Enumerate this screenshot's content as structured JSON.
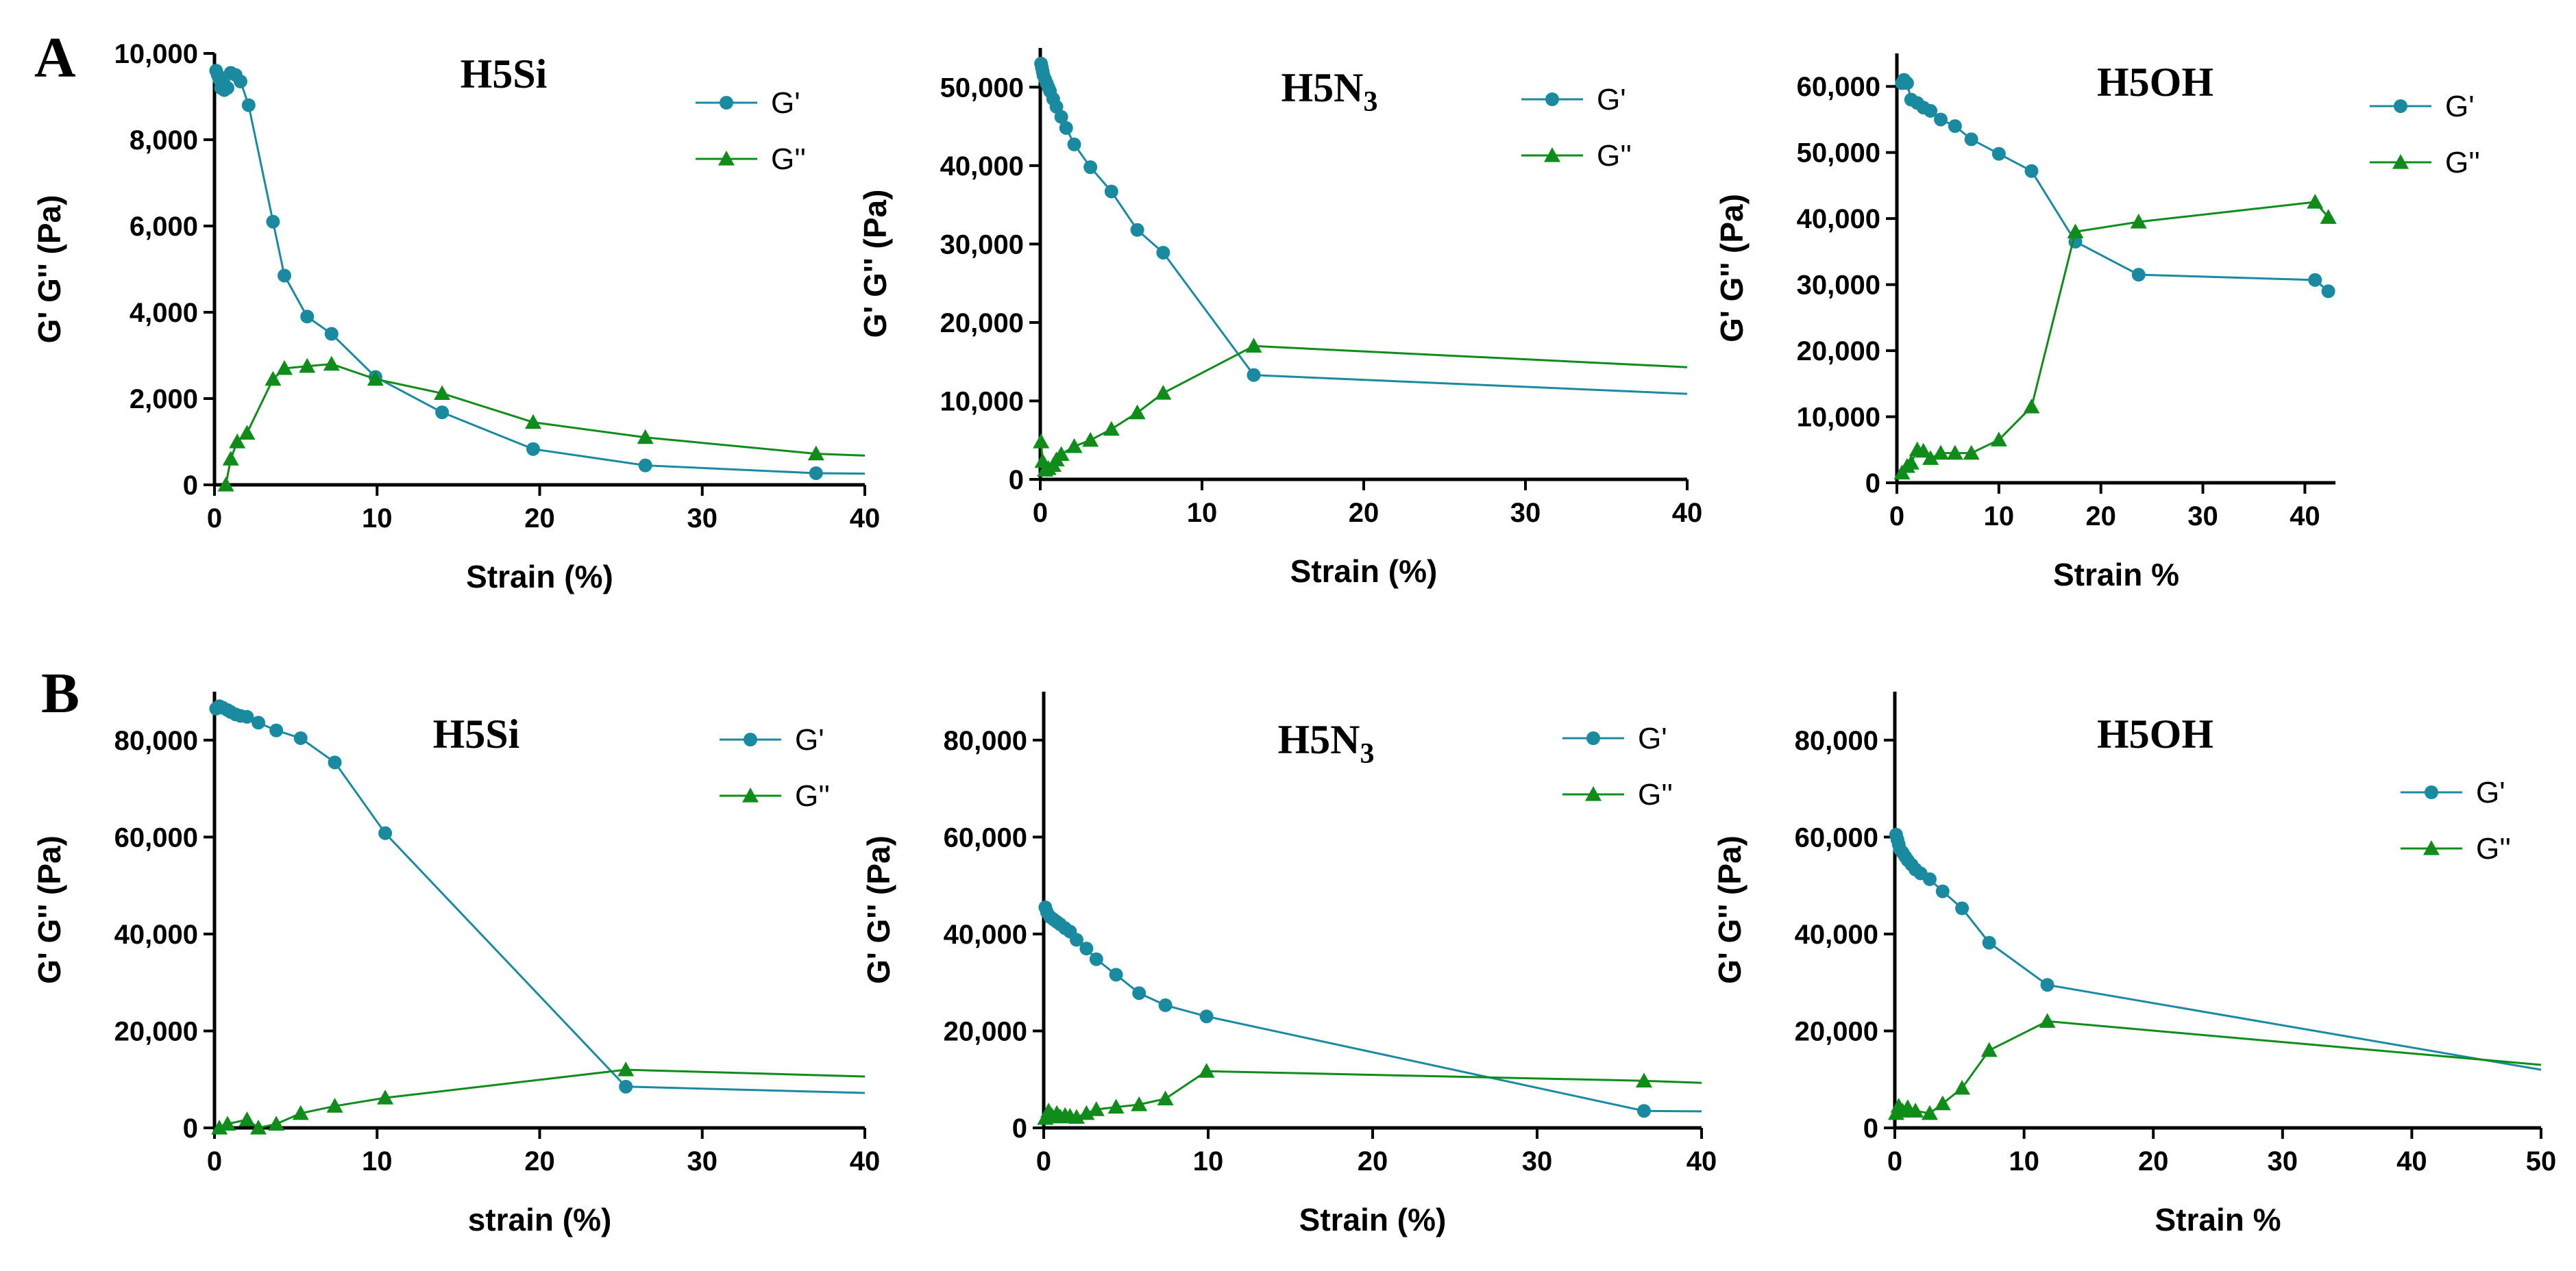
{
  "panels": [
    "A",
    "B"
  ],
  "colors": {
    "gprime": "#1a8aa0",
    "gdouble": "#0f8c1a",
    "axis": "#000000"
  },
  "chart_data": [
    {
      "panel": "A",
      "type": "line",
      "title": "H5Si",
      "title_sub": "",
      "xlabel": "Strain (%)",
      "ylabel": "G' G'' (Pa)",
      "xlim": [
        0,
        40
      ],
      "ylim": [
        0,
        10000
      ],
      "xticks": [
        0,
        10,
        20,
        30,
        40
      ],
      "xtick_labels": [
        "0",
        "10",
        "20",
        "30",
        "40"
      ],
      "yticks": [
        0,
        2000,
        4000,
        6000,
        8000,
        10000
      ],
      "ytick_labels": [
        "0",
        "2,000",
        "4,000",
        "6,000",
        "8,000",
        "10,000"
      ],
      "legend": "top-right",
      "series": [
        {
          "name": "G'",
          "marker": "circle",
          "x": [
            0.1,
            0.2,
            0.3,
            0.4,
            0.5,
            0.6,
            0.8,
            1.0,
            1.3,
            1.6,
            2.1,
            3.6,
            4.3,
            5.7,
            7.2,
            9.9,
            14,
            19.6,
            26.5,
            37,
            40
          ],
          "y": [
            9600,
            9500,
            9400,
            9200,
            9300,
            9150,
            9200,
            9550,
            9500,
            9350,
            8800,
            6100,
            4850,
            3900,
            3500,
            2500,
            1680,
            830,
            450,
            270,
            260
          ]
        },
        {
          "name": "G''",
          "marker": "triangle",
          "x": [
            0.7,
            1.0,
            1.4,
            2.0,
            3.6,
            4.3,
            5.7,
            7.2,
            9.9,
            14,
            19.6,
            26.5,
            37,
            40
          ],
          "y": [
            0,
            600,
            1000,
            1200,
            2450,
            2700,
            2750,
            2800,
            2450,
            2120,
            1450,
            1100,
            720,
            680
          ]
        }
      ]
    },
    {
      "panel": "A",
      "type": "line",
      "title": "H5N",
      "title_sub": "3",
      "xlabel": "Strain (%)",
      "ylabel": "G' G'' (Pa)",
      "xlim": [
        0,
        40
      ],
      "ylim": [
        0,
        55000
      ],
      "xticks": [
        0,
        10,
        20,
        30,
        40
      ],
      "xtick_labels": [
        "0",
        "10",
        "20",
        "30",
        "40"
      ],
      "yticks": [
        0,
        10000,
        20000,
        30000,
        40000,
        50000
      ],
      "ytick_labels": [
        "0",
        "10,000",
        "20,000",
        "30,000",
        "40,000",
        "50,000"
      ],
      "legend": "top-right",
      "series": [
        {
          "name": "G'",
          "marker": "circle",
          "x": [
            0.05,
            0.1,
            0.15,
            0.2,
            0.3,
            0.4,
            0.5,
            0.6,
            0.8,
            1.0,
            1.3,
            1.6,
            2.1,
            3.1,
            4.4,
            6.0,
            7.6,
            13.2,
            40
          ],
          "y": [
            53000,
            52500,
            52000,
            51500,
            51000,
            50500,
            50000,
            49500,
            48500,
            47500,
            46200,
            44800,
            42700,
            39800,
            36700,
            31800,
            28900,
            13300,
            10900
          ]
        },
        {
          "name": "G''",
          "marker": "triangle",
          "x": [
            0.05,
            0.15,
            0.3,
            0.5,
            0.8,
            1.0,
            1.3,
            2.1,
            3.1,
            4.4,
            6.0,
            7.6,
            13.2,
            40
          ],
          "y": [
            4800,
            2300,
            1200,
            1400,
            1800,
            2500,
            3200,
            4200,
            5000,
            6400,
            8500,
            11000,
            17000,
            14300
          ]
        }
      ]
    },
    {
      "panel": "A",
      "type": "line",
      "title": "H5OH",
      "title_sub": "",
      "xlabel": "Strain %",
      "ylabel": "G' G'' (Pa)",
      "xlim": [
        0,
        43
      ],
      "ylim": [
        0,
        65000
      ],
      "xticks": [
        0,
        10,
        20,
        30,
        40
      ],
      "xtick_labels": [
        "0",
        "10",
        "20",
        "30",
        "40"
      ],
      "yticks": [
        0,
        10000,
        20000,
        30000,
        40000,
        50000,
        60000
      ],
      "ytick_labels": [
        "0",
        "10,000",
        "20,000",
        "30,000",
        "40,000",
        "50,000",
        "60,000"
      ],
      "legend": "top-right",
      "series": [
        {
          "name": "G'",
          "marker": "circle",
          "x": [
            0.5,
            0.7,
            1.0,
            1.4,
            2.0,
            2.6,
            3.3,
            4.3,
            5.7,
            7.3,
            10.0,
            13.2,
            17.5,
            23.7,
            41,
            42.3
          ],
          "y": [
            60500,
            61000,
            60500,
            58000,
            57500,
            56800,
            56300,
            55000,
            54000,
            52000,
            49800,
            47200,
            36500,
            31500,
            30700,
            29000
          ]
        },
        {
          "name": "G''",
          "marker": "triangle",
          "x": [
            0.5,
            1.0,
            1.4,
            2.0,
            2.6,
            3.3,
            4.3,
            5.7,
            7.3,
            10.0,
            13.2,
            17.5,
            23.7,
            41,
            42.3
          ],
          "y": [
            1500,
            2500,
            3000,
            5000,
            4800,
            3700,
            4500,
            4500,
            4500,
            6500,
            11500,
            38000,
            39500,
            42500,
            40200
          ]
        }
      ]
    },
    {
      "panel": "B",
      "type": "line",
      "title": "H5Si",
      "title_sub": "",
      "xlabel": "strain (%)",
      "ylabel": "G' G'' (Pa)",
      "xlim": [
        0,
        40
      ],
      "ylim": [
        0,
        90000
      ],
      "xticks": [
        0,
        10,
        20,
        30,
        40
      ],
      "xtick_labels": [
        "0",
        "10",
        "20",
        "30",
        "40"
      ],
      "yticks": [
        0,
        20000,
        40000,
        60000,
        80000
      ],
      "ytick_labels": [
        "0",
        "20,000",
        "40,000",
        "60,000",
        "80,000"
      ],
      "legend": "top-right",
      "series": [
        {
          "name": "G'",
          "marker": "circle",
          "x": [
            0.1,
            0.3,
            0.5,
            0.8,
            1.0,
            1.3,
            1.6,
            2.0,
            2.7,
            3.8,
            5.3,
            7.4,
            10.5,
            25.3,
            40
          ],
          "y": [
            86500,
            87000,
            86700,
            86200,
            85800,
            85300,
            85000,
            84800,
            83600,
            82000,
            80400,
            75400,
            60800,
            8500,
            7200
          ]
        },
        {
          "name": "G''",
          "marker": "triangle",
          "x": [
            0.3,
            0.8,
            2.0,
            2.7,
            3.8,
            5.3,
            7.4,
            10.5,
            25.3,
            40
          ],
          "y": [
            0,
            800,
            1700,
            0,
            800,
            3000,
            4500,
            6200,
            12000,
            10600
          ]
        }
      ]
    },
    {
      "panel": "B",
      "type": "line",
      "title": "H5N",
      "title_sub": "3",
      "xlabel": "Strain (%)",
      "ylabel": "G' G'' (Pa)",
      "xlim": [
        0,
        40
      ],
      "ylim": [
        0,
        90000
      ],
      "xticks": [
        0,
        10,
        20,
        30,
        40
      ],
      "xtick_labels": [
        "0",
        "10",
        "20",
        "30",
        "40"
      ],
      "yticks": [
        0,
        20000,
        40000,
        60000,
        80000
      ],
      "ytick_labels": [
        "0",
        "20,000",
        "40,000",
        "60,000",
        "80,000"
      ],
      "legend": "top-right",
      "series": [
        {
          "name": "G'",
          "marker": "circle",
          "x": [
            0.1,
            0.2,
            0.4,
            0.6,
            0.8,
            1.0,
            1.3,
            1.6,
            2.0,
            2.6,
            3.2,
            4.4,
            5.8,
            7.4,
            9.9,
            36.5,
            40
          ],
          "y": [
            45500,
            44500,
            43500,
            43000,
            42500,
            42000,
            41200,
            40500,
            38800,
            37000,
            34800,
            31600,
            27800,
            25300,
            23000,
            3500,
            3400
          ]
        },
        {
          "name": "G''",
          "marker": "triangle",
          "x": [
            0.1,
            0.3,
            0.5,
            0.8,
            1.0,
            1.3,
            1.6,
            2.0,
            2.6,
            3.2,
            4.4,
            5.8,
            7.4,
            9.9,
            36.5,
            40
          ],
          "y": [
            2000,
            3500,
            2500,
            3000,
            2300,
            2600,
            2400,
            2200,
            3000,
            3800,
            4300,
            4800,
            6000,
            11700,
            9700,
            9300
          ]
        }
      ]
    },
    {
      "panel": "B",
      "type": "line",
      "title": "H5OH",
      "title_sub": "",
      "xlabel": "Strain %",
      "ylabel": "G' G'' (Pa)",
      "xlim": [
        0,
        50
      ],
      "ylim": [
        0,
        90000
      ],
      "xticks": [
        0,
        10,
        20,
        30,
        40,
        50
      ],
      "xtick_labels": [
        "0",
        "10",
        "20",
        "30",
        "40",
        "50"
      ],
      "yticks": [
        0,
        20000,
        40000,
        60000,
        80000
      ],
      "ytick_labels": [
        "0",
        "20,000",
        "40,000",
        "60,000",
        "80,000"
      ],
      "legend": "top-right",
      "series": [
        {
          "name": "G'",
          "marker": "circle",
          "x": [
            0.1,
            0.2,
            0.3,
            0.4,
            0.6,
            0.8,
            1.0,
            1.3,
            1.6,
            2.0,
            2.7,
            3.7,
            5.2,
            7.3,
            11.8,
            50
          ],
          "y": [
            60500,
            59500,
            58500,
            57500,
            56800,
            56000,
            55200,
            54300,
            53300,
            52500,
            51300,
            48800,
            45300,
            38200,
            29500,
            12000
          ]
        },
        {
          "name": "G''",
          "marker": "triangle",
          "x": [
            0.1,
            0.3,
            0.6,
            1.0,
            1.6,
            2.7,
            3.7,
            5.2,
            7.3,
            11.8,
            50
          ],
          "y": [
            3000,
            4500,
            3500,
            4200,
            3500,
            3000,
            5000,
            8200,
            16000,
            22000,
            13000
          ]
        }
      ]
    }
  ]
}
